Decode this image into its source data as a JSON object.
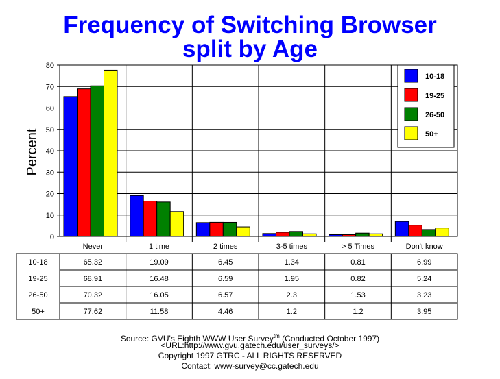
{
  "chart_data": {
    "type": "bar",
    "title": "Frequency of Switching Browser",
    "subtitle": "split by Age",
    "ylabel": "Percent",
    "xlabel": "",
    "ylim": [
      0,
      80
    ],
    "yticks": [
      0,
      10,
      20,
      30,
      40,
      50,
      60,
      70,
      80
    ],
    "grid": true,
    "legend": "top-right",
    "categories": [
      "Never",
      "1 time",
      "2 times",
      "3-5 times",
      "> 5 Times",
      "Don't know"
    ],
    "series": [
      {
        "name": "10-18",
        "color": "#0000ff",
        "values": [
          65.32,
          19.09,
          6.45,
          1.34,
          0.81,
          6.99
        ]
      },
      {
        "name": "19-25",
        "color": "#ff0000",
        "values": [
          68.91,
          16.48,
          6.59,
          1.95,
          0.82,
          5.24
        ]
      },
      {
        "name": "26-50",
        "color": "#008000",
        "values": [
          70.32,
          16.05,
          6.57,
          2.3,
          1.53,
          3.23
        ]
      },
      {
        "name": "50+",
        "color": "#ffff00",
        "values": [
          77.62,
          11.58,
          4.46,
          1.2,
          1.2,
          3.95
        ]
      }
    ]
  },
  "footer": {
    "source": "Source: GVU's Eighth WWW User Survey",
    "tm": "tm",
    "conducted": " (Conducted October 1997)",
    "url": "<URL:http://www.gvu.gatech.edu/user_surveys/>",
    "copyright": "Copyright 1997 GTRC - ALL RIGHTS RESERVED",
    "contact": "Contact: www-survey@cc.gatech.edu"
  }
}
